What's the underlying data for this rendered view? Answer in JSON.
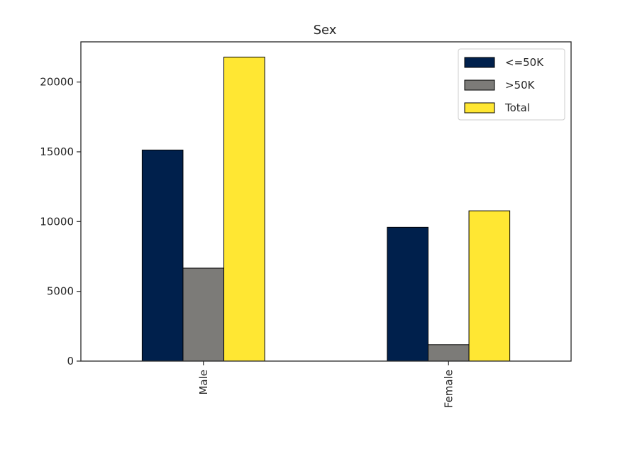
{
  "chart_data": {
    "type": "bar",
    "title": "Sex",
    "xlabel": "",
    "ylabel": "",
    "categories": [
      "Male",
      "Female"
    ],
    "series": [
      {
        "name": "<=50K",
        "values": [
          15128,
          9592
        ],
        "color": "#00204c"
      },
      {
        "name": ">50K",
        "values": [
          6662,
          1179
        ],
        "color": "#7c7b78"
      },
      {
        "name": "Total",
        "values": [
          21790,
          10771
        ],
        "color": "#ffe733"
      }
    ],
    "ylim": [
      0,
      22880
    ],
    "yticks": [
      0,
      5000,
      10000,
      15000,
      20000
    ],
    "ytick_labels": [
      "0",
      "5000",
      "10000",
      "15000",
      "20000"
    ],
    "grid": false,
    "legend_position": "top-right"
  }
}
